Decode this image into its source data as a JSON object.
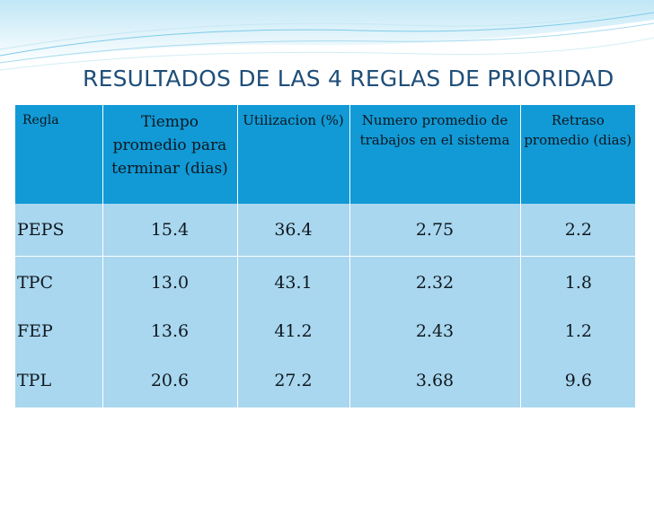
{
  "slide": {
    "title": "RESULTADOS DE LAS 4 REGLAS DE PRIORIDAD"
  },
  "table": {
    "headers": [
      "Regla",
      "Tiempo promedio para terminar (dias)",
      "Utilizacion (%)",
      "Numero promedio de trabajos en el sistema",
      "Retraso promedio (dias)"
    ],
    "rows": [
      [
        "PEPS",
        "15.4",
        "36.4",
        "2.75",
        "2.2"
      ],
      [
        "TPC",
        "13.0",
        "43.1",
        "2.32",
        "1.8"
      ],
      [
        "FEP",
        "13.6",
        "41.2",
        "2.43",
        "1.2"
      ],
      [
        "TPL",
        "20.6",
        "27.2",
        "3.68",
        "9.6"
      ]
    ]
  },
  "colors": {
    "title": "#1f4e79",
    "header_bg": "#119ad6",
    "row_bg": "#a9d7ef",
    "wave": "#2aa7d9"
  }
}
